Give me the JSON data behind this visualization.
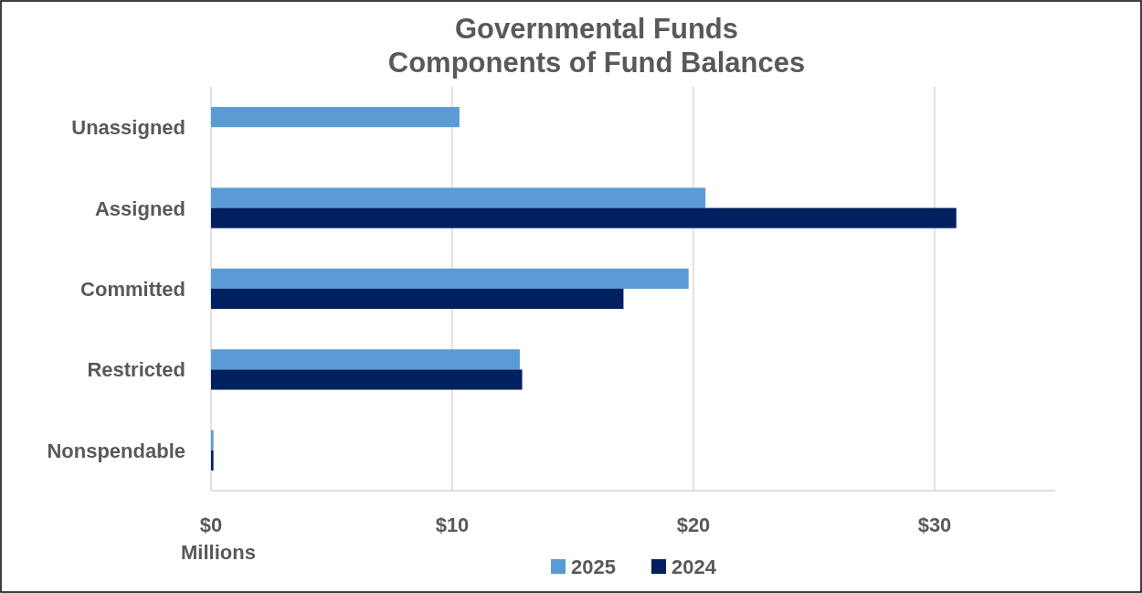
{
  "chart_data": {
    "type": "bar",
    "orientation": "horizontal",
    "title": "Governmental Funds\nComponents of Fund Balances",
    "xlabel": "Millions",
    "categories": [
      "Unassigned",
      "Assigned",
      "Committed",
      "Restricted",
      "Nonspendable"
    ],
    "series": [
      {
        "name": "2025",
        "color": "#5b9bd5",
        "values": [
          10.3,
          20.5,
          19.8,
          12.8,
          0.1
        ]
      },
      {
        "name": "2024",
        "color": "#002060",
        "values": [
          null,
          30.9,
          17.1,
          12.9,
          0.1
        ]
      }
    ],
    "xlim": [
      0,
      35
    ],
    "xticks": [
      {
        "value": 0,
        "label": "$0"
      },
      {
        "value": 10,
        "label": "$10"
      },
      {
        "value": 20,
        "label": "$20"
      },
      {
        "value": 30,
        "label": "$30"
      }
    ],
    "grid": "x",
    "legend": "bottom"
  }
}
